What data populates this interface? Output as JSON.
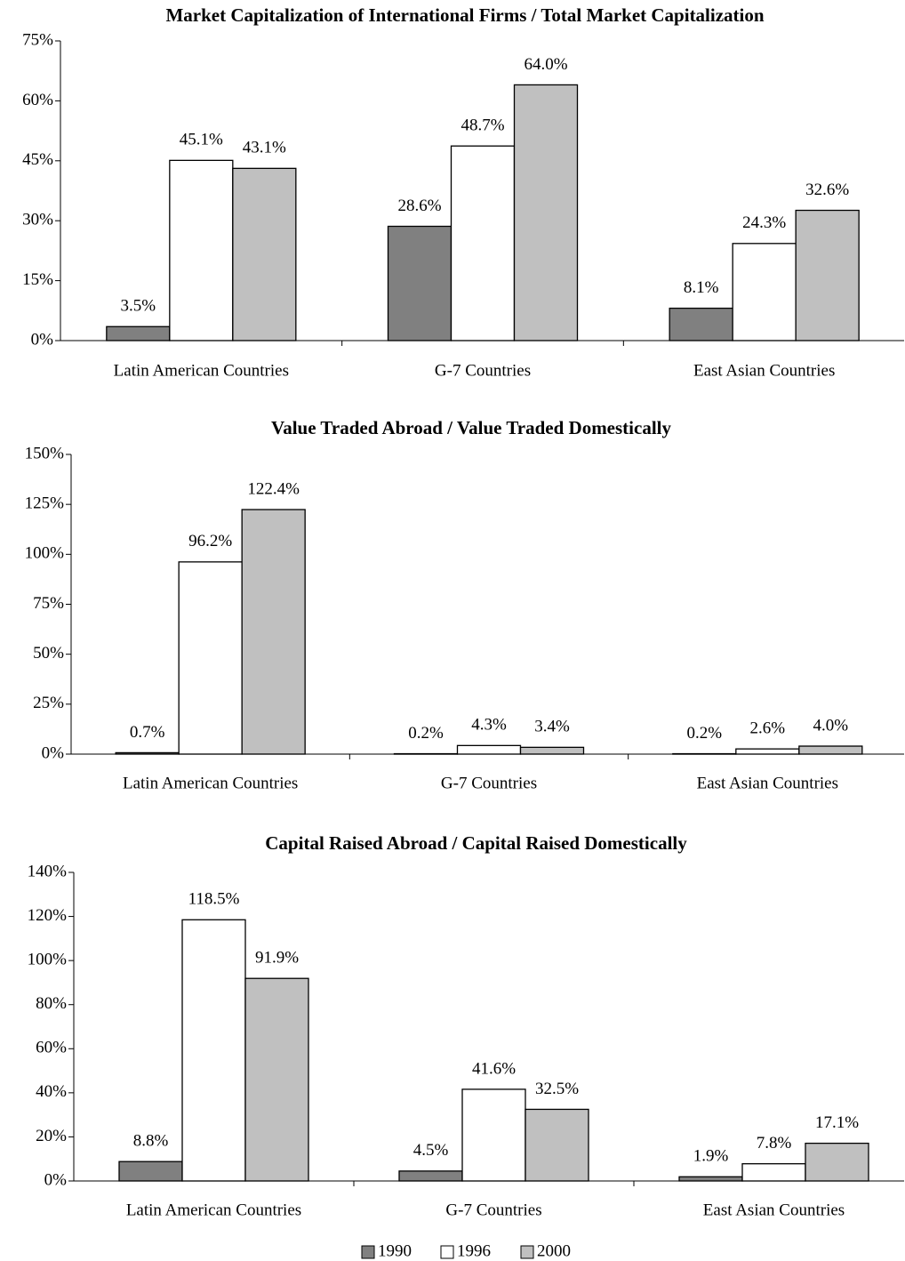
{
  "chart_data": [
    {
      "type": "bar",
      "title": "Market Capitalization of International Firms / Total Market Capitalization",
      "categories": [
        "Latin American Countries",
        "G-7 Countries",
        "East Asian Countries"
      ],
      "series": [
        {
          "name": "1990",
          "color": "#808080",
          "values": [
            3.5,
            28.6,
            8.1
          ],
          "value_labels": [
            "3.5%",
            "28.6%",
            "8.1%"
          ]
        },
        {
          "name": "1996",
          "color": "#ffffff",
          "values": [
            45.1,
            48.7,
            24.3
          ],
          "value_labels": [
            "45.1%",
            "48.7%",
            "24.3%"
          ]
        },
        {
          "name": "2000",
          "color": "#c0c0c0",
          "values": [
            43.1,
            64.0,
            32.6
          ],
          "value_labels": [
            "43.1%",
            "64.0%",
            "32.6%"
          ]
        }
      ],
      "ylim": [
        0,
        75
      ],
      "yticks": [
        {
          "value": 0,
          "label": "0%"
        },
        {
          "value": 15,
          "label": "15%"
        },
        {
          "value": 30,
          "label": "30%"
        },
        {
          "value": 45,
          "label": "45%"
        },
        {
          "value": 60,
          "label": "60%"
        },
        {
          "value": 75,
          "label": "75%"
        }
      ]
    },
    {
      "type": "bar",
      "title": "Value Traded Abroad / Value Traded Domestically",
      "categories": [
        "Latin American Countries",
        "G-7 Countries",
        "East Asian Countries"
      ],
      "series": [
        {
          "name": "1990",
          "color": "#808080",
          "values": [
            0.7,
            0.2,
            0.2
          ],
          "value_labels": [
            "0.7%",
            "0.2%",
            "0.2%"
          ]
        },
        {
          "name": "1996",
          "color": "#ffffff",
          "values": [
            96.2,
            4.3,
            2.6
          ],
          "value_labels": [
            "96.2%",
            "4.3%",
            "2.6%"
          ]
        },
        {
          "name": "2000",
          "color": "#c0c0c0",
          "values": [
            122.4,
            3.4,
            4.0
          ],
          "value_labels": [
            "122.4%",
            "3.4%",
            "4.0%"
          ]
        }
      ],
      "ylim": [
        0,
        150
      ],
      "yticks": [
        {
          "value": 0,
          "label": "0%"
        },
        {
          "value": 25,
          "label": "25%"
        },
        {
          "value": 50,
          "label": "50%"
        },
        {
          "value": 75,
          "label": "75%"
        },
        {
          "value": 100,
          "label": "100%"
        },
        {
          "value": 125,
          "label": "125%"
        },
        {
          "value": 150,
          "label": "150%"
        }
      ]
    },
    {
      "type": "bar",
      "title": "Capital Raised Abroad / Capital Raised Domestically",
      "categories": [
        "Latin American Countries",
        "G-7 Countries",
        "East Asian Countries"
      ],
      "series": [
        {
          "name": "1990",
          "color": "#808080",
          "values": [
            8.8,
            4.5,
            1.9
          ],
          "value_labels": [
            "8.8%",
            "4.5%",
            "1.9%"
          ]
        },
        {
          "name": "1996",
          "color": "#ffffff",
          "values": [
            118.5,
            41.6,
            7.8
          ],
          "value_labels": [
            "118.5%",
            "41.6%",
            "7.8%"
          ]
        },
        {
          "name": "2000",
          "color": "#c0c0c0",
          "values": [
            91.9,
            32.5,
            17.1
          ],
          "value_labels": [
            "91.9%",
            "32.5%",
            "17.1%"
          ]
        }
      ],
      "ylim": [
        0,
        140
      ],
      "yticks": [
        {
          "value": 0,
          "label": "0%"
        },
        {
          "value": 20,
          "label": "20%"
        },
        {
          "value": 40,
          "label": "40%"
        },
        {
          "value": 60,
          "label": "60%"
        },
        {
          "value": 80,
          "label": "80%"
        },
        {
          "value": 100,
          "label": "100%"
        },
        {
          "value": 120,
          "label": "120%"
        },
        {
          "value": 140,
          "label": "140%"
        }
      ]
    }
  ]
}
